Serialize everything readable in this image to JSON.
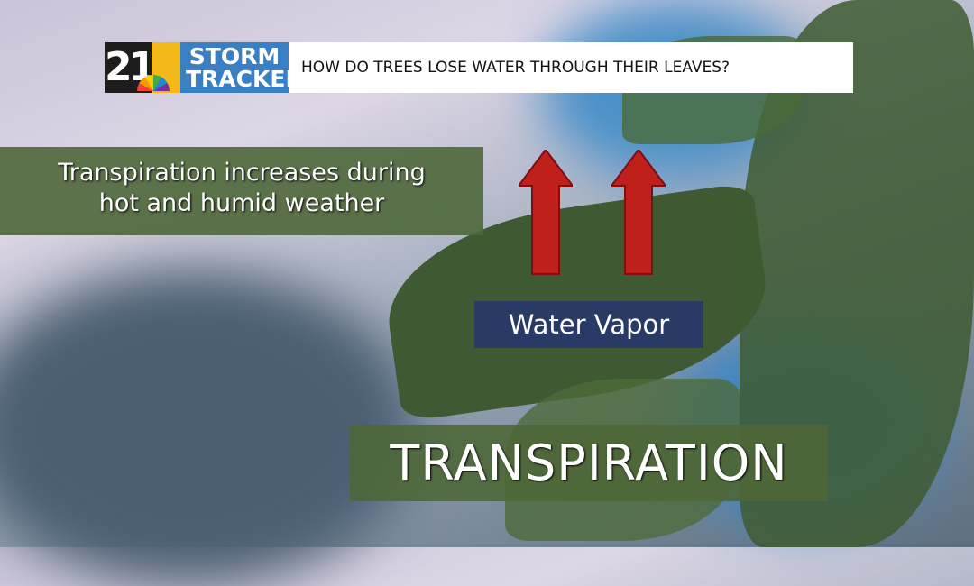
{
  "logo": {
    "channel": "21",
    "brand_line1": "STORM",
    "brand_line2": "TRACKER"
  },
  "banner": {
    "question": "HOW DO TREES LOSE WATER THROUGH THEIR LEAVES?"
  },
  "info_panel": {
    "line1": "Transpiration increases during",
    "line2": "hot and humid weather"
  },
  "label": {
    "vapor": "Water Vapor"
  },
  "title": {
    "text": "TRANSPIRATION"
  },
  "colors": {
    "panel_green": "#4e6738",
    "arrow_red": "#c0201c",
    "brand_blue": "#3a7fc4",
    "vapor_navy": "#2a3a66"
  }
}
